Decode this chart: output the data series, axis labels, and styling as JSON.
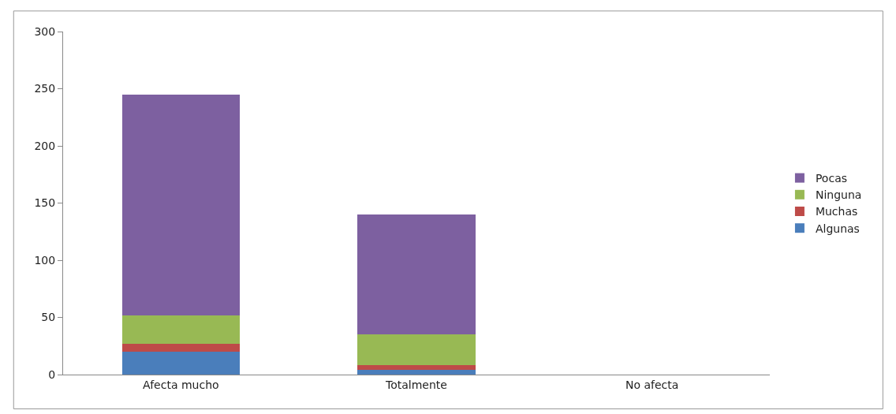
{
  "chart_data": {
    "type": "bar",
    "stacked": true,
    "categories": [
      "Afecta mucho",
      "Totalmente",
      "No afecta"
    ],
    "series": [
      {
        "name": "Algunas",
        "color": "#4a7ebb",
        "values": [
          20,
          4,
          0
        ]
      },
      {
        "name": "Muchas",
        "color": "#be4b48",
        "values": [
          7,
          4,
          0
        ]
      },
      {
        "name": "Ninguna",
        "color": "#98b954",
        "values": [
          25,
          27,
          0
        ]
      },
      {
        "name": "Pocas",
        "color": "#7d60a0",
        "values": [
          193,
          105,
          0
        ]
      }
    ],
    "ylim": [
      0,
      300
    ],
    "yticks": [
      0,
      50,
      100,
      150,
      200,
      250,
      300
    ],
    "legend": "right"
  }
}
